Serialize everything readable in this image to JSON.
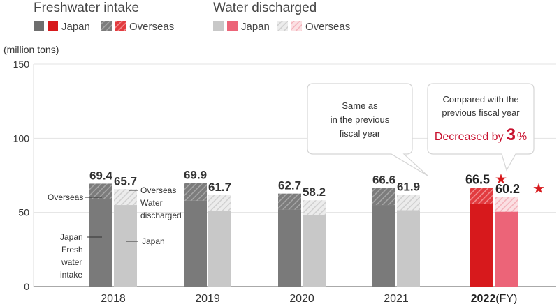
{
  "legend": {
    "intake_title": "Freshwater intake",
    "discharged_title": "Water discharged",
    "japan_label": "Japan",
    "overseas_label": "Overseas"
  },
  "unit_label": "(million tons)",
  "fy_suffix": "(FY)",
  "callouts": {
    "same": [
      "Same as",
      "in the previous",
      "fiscal year"
    ],
    "compared": [
      "Compared with the",
      "previous fiscal year"
    ],
    "decreased_prefix": "Decreased by",
    "decreased_value": "3",
    "decreased_unit": "%"
  },
  "annotations": {
    "overseas_left": "Overseas",
    "overseas_right": "Overseas",
    "water_discharged": [
      "Water",
      "discharged"
    ],
    "japan_right": "Japan",
    "japan_fresh": [
      "Japan",
      "Fresh",
      "water",
      "intake"
    ]
  },
  "star": "★",
  "colors": {
    "intake_japan": "#7a7a7a",
    "intake_overseas": "#8f8f8f",
    "discharged_japan": "#c8c8c8",
    "discharged_overseas": "#dcdcdc",
    "hl_intake_japan": "#d7191c",
    "hl_intake_overseas": "#e8484b",
    "hl_discharged_japan": "#ec6478",
    "hl_discharged_overseas": "#f6b6be"
  },
  "chart_data": {
    "type": "bar",
    "categories": [
      "2018",
      "2019",
      "2020",
      "2021",
      "2022"
    ],
    "ylim": [
      0,
      150
    ],
    "yticks": [
      0,
      50,
      100,
      150
    ],
    "series": [
      {
        "name": "Freshwater intake",
        "values": [
          69.4,
          69.9,
          62.7,
          66.6,
          66.5
        ],
        "japan": [
          59,
          58,
          52,
          55,
          55.5
        ]
      },
      {
        "name": "Water discharged",
        "values": [
          65.7,
          61.7,
          58.2,
          61.9,
          60.2
        ],
        "japan": [
          55,
          51,
          48,
          51.5,
          50.5
        ]
      }
    ],
    "highlight_category": "2022"
  }
}
